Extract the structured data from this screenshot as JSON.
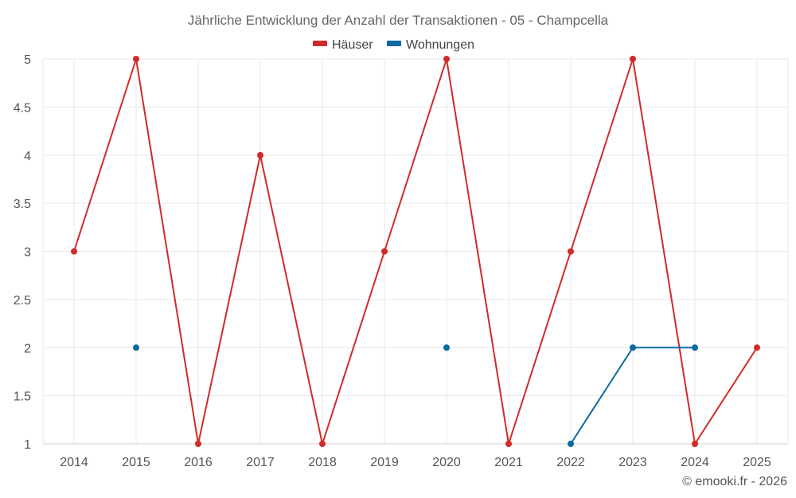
{
  "chart_data": {
    "type": "line",
    "title": "Jährliche Entwicklung der Anzahl der Transaktionen - 05 - Champcella",
    "categories": [
      "2014",
      "2015",
      "2016",
      "2017",
      "2018",
      "2019",
      "2020",
      "2021",
      "2022",
      "2023",
      "2024",
      "2025"
    ],
    "ylim": [
      1,
      5
    ],
    "yticks": [
      "1",
      "1.5",
      "2",
      "2.5",
      "3",
      "3.5",
      "4",
      "4.5",
      "5"
    ],
    "grid": true,
    "legend_position": "top-center",
    "series": [
      {
        "name": "Häuser",
        "color": "#d12a2a",
        "values": [
          3,
          5,
          1,
          4,
          1,
          3,
          5,
          1,
          3,
          5,
          1,
          2
        ]
      },
      {
        "name": "Wohnungen",
        "color": "#0a6aa1",
        "values": [
          null,
          2,
          null,
          null,
          null,
          null,
          2,
          null,
          1,
          2,
          2,
          null
        ]
      }
    ]
  },
  "credit": "© emooki.fr - 2026"
}
